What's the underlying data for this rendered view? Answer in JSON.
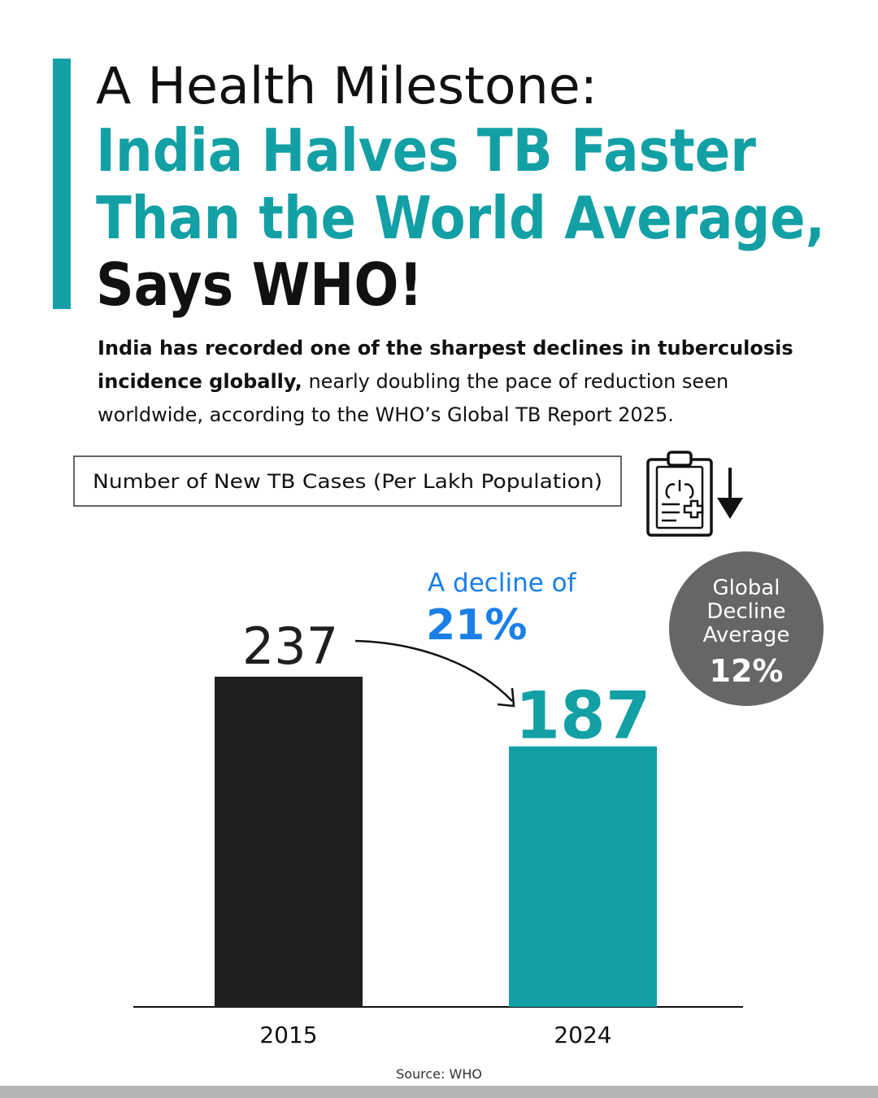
{
  "chart_data": {
    "type": "bar",
    "title_lines": [
      "A Health Milestone:",
      "India Halves TB Faster",
      "Than the World Average,",
      "Says WHO!"
    ],
    "subtitle_bold": "India has recorded one of the sharpest declines in tuberculosis incidence globally,",
    "subtitle": "nearly doubling the pace of reduction seen worldwide, according to the WHO’s Global TB Report 2025.",
    "chart_label": "Number of New TB Cases (Per Lakh Population)",
    "categories": [
      "2015",
      "2024"
    ],
    "values": [
      237,
      187
    ],
    "colors": [
      "#1f1f1f",
      "#12a0a5"
    ],
    "annotation": [
      "A decline of",
      "21%"
    ],
    "callout": [
      "Global",
      "Decline",
      "Average",
      "12%"
    ],
    "source": "Source: WHO"
  }
}
